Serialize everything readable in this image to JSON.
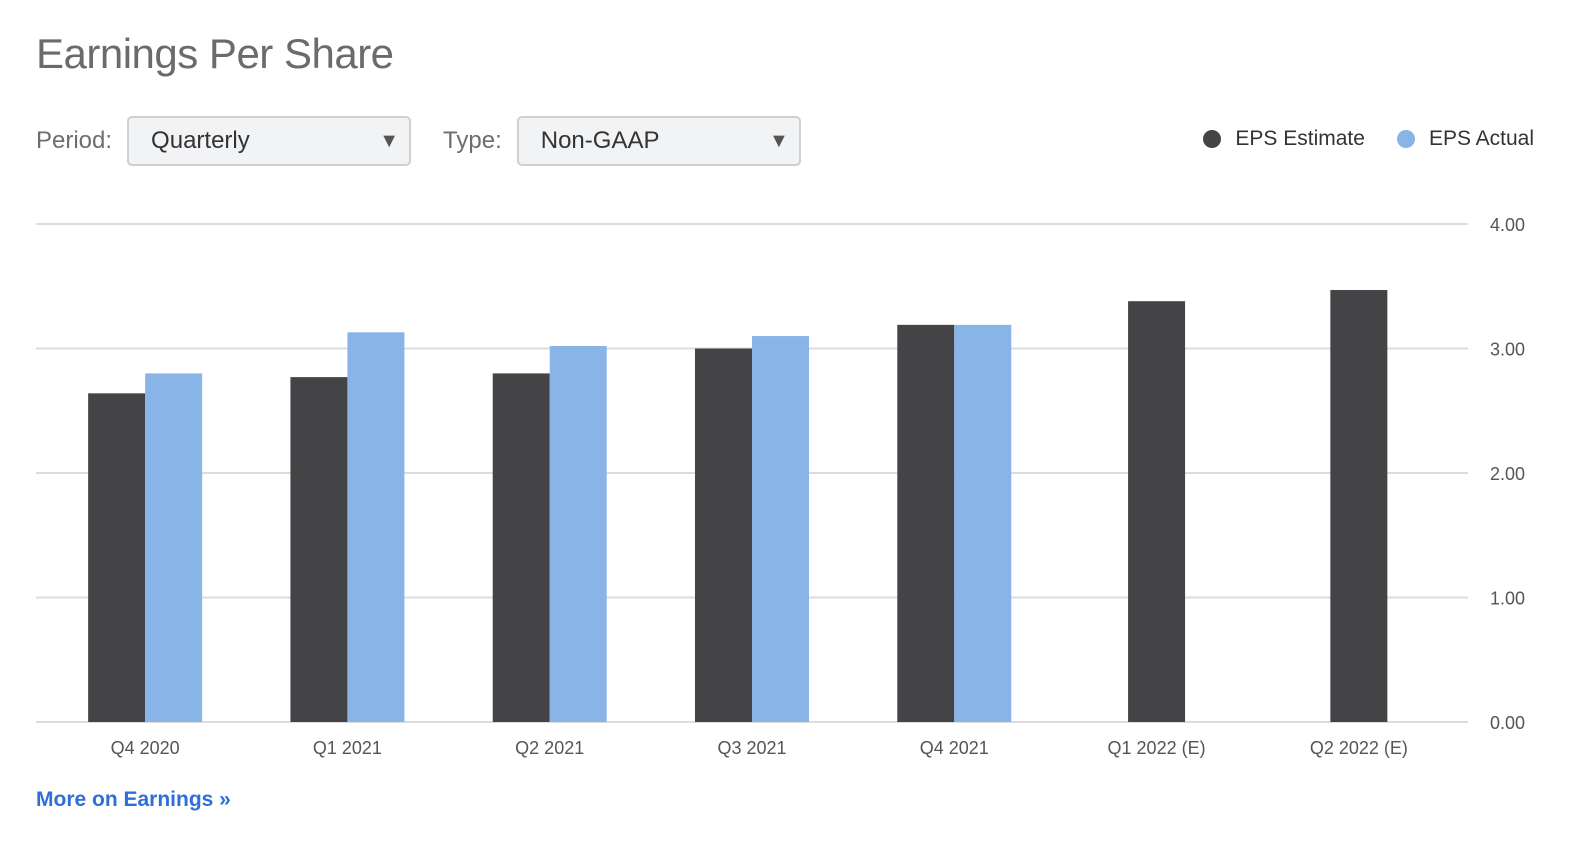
{
  "title": "Earnings Per Share",
  "controls": {
    "period_label": "Period:",
    "period_value": "Quarterly",
    "type_label": "Type:",
    "type_value": "Non-GAAP",
    "arrow_glyph": "▼"
  },
  "legend": [
    {
      "label": "EPS Estimate",
      "color": "#444447"
    },
    {
      "label": "EPS Actual",
      "color": "#88b4e7"
    }
  ],
  "more_link": "More on Earnings »",
  "colors": {
    "estimate": "#444447",
    "actual": "#88b4e7",
    "grid": "#dcdcdc",
    "axis_text": "#555555",
    "link": "#2f6fd8"
  },
  "chart_data": {
    "type": "bar",
    "categories": [
      "Q4 2020",
      "Q1 2021",
      "Q2 2021",
      "Q3 2021",
      "Q4 2021",
      "Q1 2022 (E)",
      "Q2 2022 (E)"
    ],
    "series": [
      {
        "name": "EPS Estimate",
        "values": [
          2.64,
          2.77,
          2.8,
          3.0,
          3.19,
          3.38,
          3.47
        ]
      },
      {
        "name": "EPS Actual",
        "values": [
          2.8,
          3.13,
          3.02,
          3.1,
          3.19,
          null,
          null
        ]
      }
    ],
    "yticks": [
      "0.00",
      "1.00",
      "2.00",
      "3.00",
      "4.00"
    ],
    "ylim": [
      0,
      4
    ],
    "y_axis_side": "right",
    "grid": true,
    "legend_position": "top-right",
    "title": "Earnings Per Share",
    "xlabel": "",
    "ylabel": ""
  }
}
